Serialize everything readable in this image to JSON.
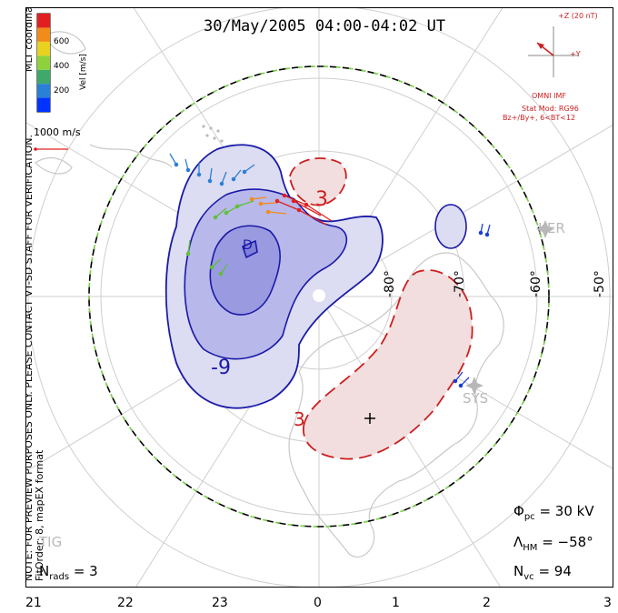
{
  "title": "30/May/2005 04:00-04:02 UT",
  "colorbar": {
    "unit_label": "Vel [m/s]",
    "ticks": [
      "600",
      "400",
      "200"
    ],
    "colors": [
      "#0033ff",
      "#2a7fd6",
      "#3fa86b",
      "#8fd13a",
      "#e8d21f",
      "#f08c1a",
      "#e02020"
    ]
  },
  "coordinates_label": "MLT coordinates",
  "reference_vector": "1000 m/s",
  "preview_note": "NOTE: FOR PREVIEW PURPOSES ONLY. PLEASE CONTACT VT-SD STAFF FOR VERIFICATION.",
  "fit_note": "FitOrder: 8, mapEX format",
  "imf": {
    "z_label": "+Z (20 nT)",
    "y_label": "+Y",
    "source": "OMNI IMF",
    "model": "Stat Mod: RG96",
    "conditions": "Bz+/By+, 6<BT<12"
  },
  "contours": {
    "negative_label": "-9",
    "center_label": "D",
    "positive_label_top": "3",
    "positive_label_bottom": "3"
  },
  "latitudes": [
    "-80°",
    "-70°",
    "-60°",
    "-50°"
  ],
  "stations": [
    "KER",
    "SYS",
    "TIG"
  ],
  "stats": {
    "nrads_label": "N",
    "nrads_sub": "rads",
    "nrads_value": "= 3",
    "phi_label": "Φ",
    "phi_sub": "pc",
    "phi_value": "= 30 kV",
    "lambda_label": "Λ",
    "lambda_sub": "HM",
    "lambda_value": "= −58°",
    "nvc_label": "N",
    "nvc_sub": "vc",
    "nvc_value": "= 94"
  },
  "mlt_ticks": [
    "21",
    "22",
    "23",
    "0",
    "1",
    "2",
    "3"
  ],
  "colors": {
    "negative_fill": "#dcdcf2",
    "negative_inner": "#b8b8ea",
    "negative_core": "#9a9ae0",
    "negative_line": "#1a1aa8",
    "positive_fill": "#f2dede",
    "positive_line": "#cc1f1f",
    "boundary_dash": "#7bd14a",
    "grid": "#cfcfcf",
    "coast": "#c8c8c8"
  }
}
